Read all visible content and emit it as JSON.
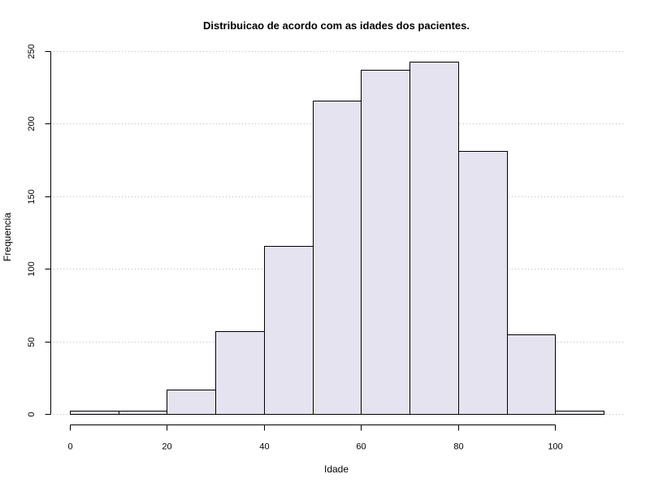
{
  "chart_data": {
    "type": "bar",
    "title": "Distribuicao de acordo com as idades dos pacientes.",
    "xlabel": "Idade",
    "ylabel": "Frequencia",
    "bins": [
      {
        "from": 0,
        "to": 10,
        "count": 2
      },
      {
        "from": 10,
        "to": 20,
        "count": 2
      },
      {
        "from": 20,
        "to": 30,
        "count": 17
      },
      {
        "from": 30,
        "to": 40,
        "count": 57
      },
      {
        "from": 40,
        "to": 50,
        "count": 116
      },
      {
        "from": 50,
        "to": 60,
        "count": 216
      },
      {
        "from": 60,
        "to": 70,
        "count": 237
      },
      {
        "from": 70,
        "to": 80,
        "count": 243
      },
      {
        "from": 80,
        "to": 90,
        "count": 181
      },
      {
        "from": 90,
        "to": 100,
        "count": 55
      },
      {
        "from": 100,
        "to": 110,
        "count": 2
      }
    ],
    "xlim": [
      0,
      110
    ],
    "ylim": [
      0,
      250
    ],
    "x_ticks": [
      0,
      20,
      40,
      60,
      80,
      100
    ],
    "y_ticks": [
      0,
      50,
      100,
      150,
      200,
      250
    ],
    "grid": true,
    "bar_color": "#e6e3f0",
    "grid_color": "#bbbbbb"
  }
}
